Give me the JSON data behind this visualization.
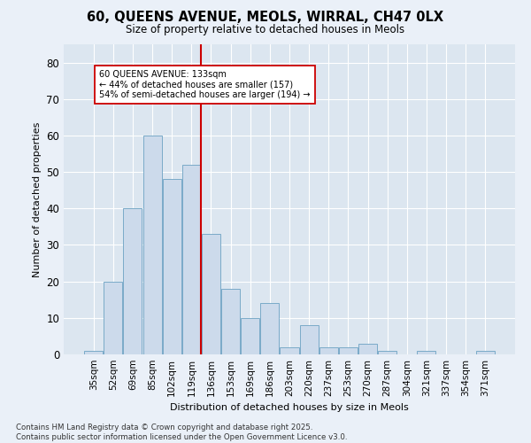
{
  "title_line1": "60, QUEENS AVENUE, MEOLS, WIRRAL, CH47 0LX",
  "title_line2": "Size of property relative to detached houses in Meols",
  "xlabel": "Distribution of detached houses by size in Meols",
  "ylabel": "Number of detached properties",
  "categories": [
    "35sqm",
    "52sqm",
    "69sqm",
    "85sqm",
    "102sqm",
    "119sqm",
    "136sqm",
    "153sqm",
    "169sqm",
    "186sqm",
    "203sqm",
    "220sqm",
    "237sqm",
    "253sqm",
    "270sqm",
    "287sqm",
    "304sqm",
    "321sqm",
    "337sqm",
    "354sqm",
    "371sqm"
  ],
  "values": [
    1,
    20,
    40,
    60,
    48,
    52,
    33,
    18,
    10,
    14,
    2,
    8,
    2,
    2,
    3,
    1,
    0,
    1,
    0,
    0,
    1
  ],
  "bar_color": "#ccdaeb",
  "bar_edge_color": "#7aaan0",
  "vline_x_index": 6,
  "vline_color": "#cc0000",
  "annotation_text": "60 QUEENS AVENUE: 133sqm\n← 44% of detached houses are smaller (157)\n54% of semi-detached houses are larger (194) →",
  "annotation_box_color": "#ffffff",
  "annotation_box_edge": "#cc0000",
  "ylim": [
    0,
    85
  ],
  "yticks": [
    0,
    10,
    20,
    30,
    40,
    50,
    60,
    70,
    80
  ],
  "plot_bg_color": "#dce6f0",
  "fig_bg_color": "#eaf0f8",
  "footer_line1": "Contains HM Land Registry data © Crown copyright and database right 2025.",
  "footer_line2": "Contains public sector information licensed under the Open Government Licence v3.0."
}
